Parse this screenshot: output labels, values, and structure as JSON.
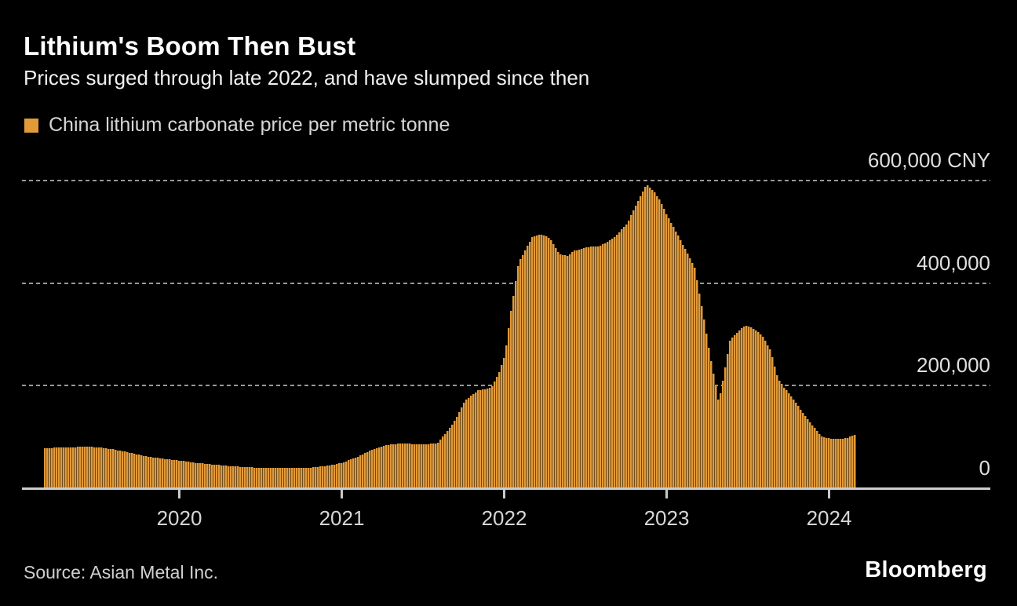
{
  "header": {
    "title": "Lithium's Boom Then Bust",
    "subtitle": "Prices surged through late 2022, and have slumped since then"
  },
  "legend": {
    "label": "China lithium carbonate price per metric tonne"
  },
  "colors": {
    "background": "#000000",
    "bar": "#E29A39",
    "bar_gap": "#6F4C1C",
    "gridline": "#989898",
    "axis": "#CCCCCC",
    "title_text": "#FFFFFF",
    "secondary_text": "#D6D6D6"
  },
  "chart_data": {
    "type": "bar",
    "title": "Lithium's Boom Then Bust",
    "subtitle": "Prices surged through late 2022, and have slumped since then",
    "series_name": "China lithium carbonate price per metric tonne",
    "unit": "CNY per metric tonne",
    "grid": "dashed-horizontal",
    "legend_position": "top-left",
    "y_axis": {
      "min": 0,
      "max": 600000,
      "label_side": "right",
      "ticks": [
        {
          "value": 600000,
          "label": "600,000 CNY"
        },
        {
          "value": 400000,
          "label": "400,000"
        },
        {
          "value": 200000,
          "label": "200,000"
        },
        {
          "value": 0,
          "label": "0"
        }
      ],
      "gridline_values": [
        600000,
        400000,
        200000
      ]
    },
    "x_axis": {
      "start": "2019-03-01",
      "end": "2024-03-01",
      "tick_labels": [
        "2020",
        "2021",
        "2022",
        "2023",
        "2024"
      ]
    },
    "points": [
      [
        "2019-03-01",
        78500
      ],
      [
        "2019-04-01",
        79000
      ],
      [
        "2019-05-01",
        80000
      ],
      [
        "2019-06-01",
        81000
      ],
      [
        "2019-07-01",
        80000
      ],
      [
        "2019-08-01",
        76000
      ],
      [
        "2019-09-01",
        71000
      ],
      [
        "2019-10-01",
        65000
      ],
      [
        "2019-11-01",
        60000
      ],
      [
        "2019-12-01",
        57000
      ],
      [
        "2020-01-01",
        54000
      ],
      [
        "2020-02-01",
        50000
      ],
      [
        "2020-03-01",
        47500
      ],
      [
        "2020-04-01",
        45000
      ],
      [
        "2020-05-01",
        42500
      ],
      [
        "2020-06-01",
        41000
      ],
      [
        "2020-07-01",
        40000
      ],
      [
        "2020-08-01",
        39500
      ],
      [
        "2020-09-01",
        39000
      ],
      [
        "2020-10-01",
        39500
      ],
      [
        "2020-11-01",
        41000
      ],
      [
        "2020-12-01",
        44500
      ],
      [
        "2021-01-01",
        50000
      ],
      [
        "2021-02-01",
        60000
      ],
      [
        "2021-03-01",
        73000
      ],
      [
        "2021-04-01",
        83000
      ],
      [
        "2021-05-01",
        86500
      ],
      [
        "2021-06-01",
        86500
      ],
      [
        "2021-07-01",
        85000
      ],
      [
        "2021-08-01",
        88000
      ],
      [
        "2021-09-01",
        120000
      ],
      [
        "2021-09-15",
        140000
      ],
      [
        "2021-10-01",
        170000
      ],
      [
        "2021-10-15",
        180000
      ],
      [
        "2021-11-01",
        191000
      ],
      [
        "2021-12-01",
        196000
      ],
      [
        "2021-12-20",
        230000
      ],
      [
        "2022-01-01",
        262000
      ],
      [
        "2022-01-15",
        350000
      ],
      [
        "2022-02-01",
        440000
      ],
      [
        "2022-03-01",
        490000
      ],
      [
        "2022-03-20",
        496000
      ],
      [
        "2022-04-10",
        488000
      ],
      [
        "2022-05-01",
        456000
      ],
      [
        "2022-05-20",
        453000
      ],
      [
        "2022-06-01",
        462000
      ],
      [
        "2022-07-01",
        470000
      ],
      [
        "2022-08-01",
        472000
      ],
      [
        "2022-09-01",
        488000
      ],
      [
        "2022-10-01",
        515000
      ],
      [
        "2022-10-20",
        550000
      ],
      [
        "2022-11-01",
        570000
      ],
      [
        "2022-11-15",
        593000
      ],
      [
        "2022-12-01",
        578000
      ],
      [
        "2022-12-15",
        560000
      ],
      [
        "2023-01-01",
        530000
      ],
      [
        "2023-02-01",
        482000
      ],
      [
        "2023-03-01",
        430000
      ],
      [
        "2023-03-20",
        340000
      ],
      [
        "2023-04-01",
        280000
      ],
      [
        "2023-04-25",
        166000
      ],
      [
        "2023-05-20",
        290000
      ],
      [
        "2023-06-10",
        308000
      ],
      [
        "2023-06-25",
        318000
      ],
      [
        "2023-07-10",
        312000
      ],
      [
        "2023-08-01",
        298000
      ],
      [
        "2023-08-20",
        268000
      ],
      [
        "2023-09-05",
        215000
      ],
      [
        "2023-09-20",
        196000
      ],
      [
        "2023-10-10",
        174000
      ],
      [
        "2023-10-25",
        155000
      ],
      [
        "2023-11-10",
        136000
      ],
      [
        "2023-11-25",
        120000
      ],
      [
        "2023-12-10",
        103000
      ],
      [
        "2023-12-20",
        98000
      ],
      [
        "2024-01-15",
        96500
      ],
      [
        "2024-02-10",
        97500
      ],
      [
        "2024-02-20",
        103000
      ],
      [
        "2024-03-01",
        105000
      ]
    ]
  },
  "footer": {
    "source": "Source: Asian Metal Inc.",
    "brand": "Bloomberg"
  }
}
